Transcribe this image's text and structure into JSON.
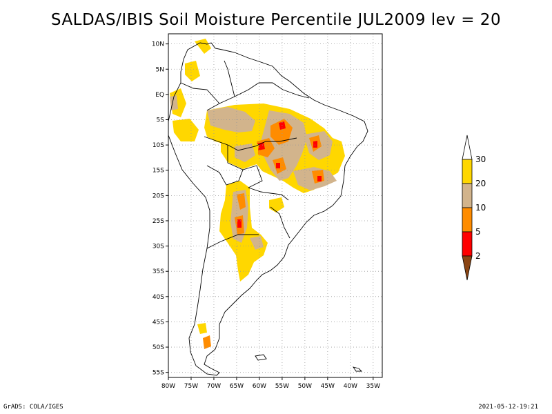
{
  "title": "SALDAS/IBIS Soil Moisture Percentile JUL2009 lev = 20",
  "footer": {
    "left": "GrADS: COLA/IGES",
    "right": "2021-05-12-19:21"
  },
  "map": {
    "lon_range": [
      -80,
      -33
    ],
    "lat_range": [
      -56,
      12
    ],
    "lat_ticks": [
      {
        "value": 10,
        "label": "10N"
      },
      {
        "value": 5,
        "label": "5N"
      },
      {
        "value": 0,
        "label": "EQ"
      },
      {
        "value": -5,
        "label": "5S"
      },
      {
        "value": -10,
        "label": "10S"
      },
      {
        "value": -15,
        "label": "15S"
      },
      {
        "value": -20,
        "label": "20S"
      },
      {
        "value": -25,
        "label": "25S"
      },
      {
        "value": -30,
        "label": "30S"
      },
      {
        "value": -35,
        "label": "35S"
      },
      {
        "value": -40,
        "label": "40S"
      },
      {
        "value": -45,
        "label": "45S"
      },
      {
        "value": -50,
        "label": "50S"
      },
      {
        "value": -55,
        "label": "55S"
      }
    ],
    "lon_ticks": [
      {
        "value": -80,
        "label": "80W"
      },
      {
        "value": -75,
        "label": "75W"
      },
      {
        "value": -70,
        "label": "70W"
      },
      {
        "value": -65,
        "label": "65W"
      },
      {
        "value": -60,
        "label": "60W"
      },
      {
        "value": -55,
        "label": "55W"
      },
      {
        "value": -50,
        "label": "50W"
      },
      {
        "value": -45,
        "label": "45W"
      },
      {
        "value": -40,
        "label": "40W"
      },
      {
        "value": -35,
        "label": "35W"
      }
    ]
  },
  "legend": {
    "labels": [
      "2",
      "5",
      "10",
      "20",
      "30"
    ],
    "colors": {
      "below2": "#8b4513",
      "2-5": "#ff0000",
      "5-10": "#ff8c00",
      "10-20": "#d2b48c",
      "20-30": "#ffd700",
      "above30": "#ffffff"
    }
  }
}
